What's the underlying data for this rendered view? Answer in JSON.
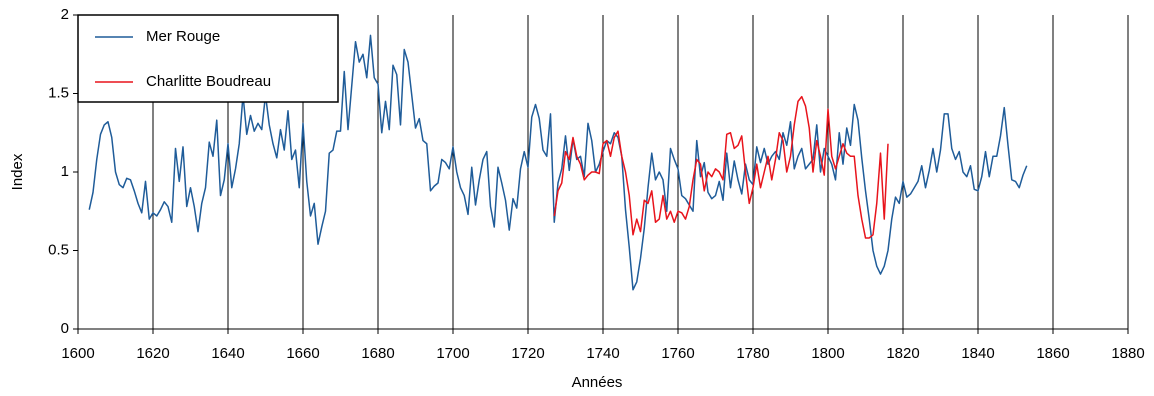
{
  "chart_data": {
    "type": "line",
    "xlabel": "Années",
    "ylabel": "Index",
    "xlim": [
      1600,
      1880
    ],
    "ylim": [
      0,
      2
    ],
    "xticks": [
      1600,
      1620,
      1640,
      1660,
      1680,
      1700,
      1720,
      1740,
      1760,
      1780,
      1800,
      1820,
      1840,
      1860,
      1880
    ],
    "yticks": [
      0,
      0.5,
      1,
      1.5,
      2
    ],
    "grid": "x",
    "legend": "upper left",
    "series": [
      {
        "name": "Mer Rouge",
        "color": "#1f5c99",
        "x": [
          1603,
          1604,
          1605,
          1606,
          1607,
          1608,
          1609,
          1610,
          1611,
          1612,
          1613,
          1614,
          1615,
          1616,
          1617,
          1618,
          1619,
          1620,
          1621,
          1622,
          1623,
          1624,
          1625,
          1626,
          1627,
          1628,
          1629,
          1630,
          1631,
          1632,
          1633,
          1634,
          1635,
          1636,
          1637,
          1638,
          1639,
          1640,
          1641,
          1642,
          1643,
          1644,
          1645,
          1646,
          1647,
          1648,
          1649,
          1650,
          1651,
          1652,
          1653,
          1654,
          1655,
          1656,
          1657,
          1658,
          1659,
          1660,
          1661,
          1662,
          1663,
          1664,
          1665,
          1666,
          1667,
          1668,
          1669,
          1670,
          1671,
          1672,
          1673,
          1674,
          1675,
          1676,
          1677,
          1678,
          1679,
          1680,
          1681,
          1682,
          1683,
          1684,
          1685,
          1686,
          1687,
          1688,
          1689,
          1690,
          1691,
          1692,
          1693,
          1694,
          1695,
          1696,
          1697,
          1698,
          1699,
          1700,
          1701,
          1702,
          1703,
          1704,
          1705,
          1706,
          1707,
          1708,
          1709,
          1710,
          1711,
          1712,
          1713,
          1714,
          1715,
          1716,
          1717,
          1718,
          1719,
          1720,
          1721,
          1722,
          1723,
          1724,
          1725,
          1726,
          1727,
          1728,
          1729,
          1730,
          1731,
          1732,
          1733,
          1734,
          1735,
          1736,
          1737,
          1738,
          1739,
          1740,
          1741,
          1742,
          1743,
          1744,
          1745,
          1746,
          1747,
          1748,
          1749,
          1750,
          1751,
          1752,
          1753,
          1754,
          1755,
          1756,
          1757,
          1758,
          1759,
          1760,
          1761,
          1762,
          1763,
          1764,
          1765,
          1766,
          1767,
          1768,
          1769,
          1770,
          1771,
          1772,
          1773,
          1774,
          1775,
          1776,
          1777,
          1778,
          1779,
          1780,
          1781,
          1782,
          1783,
          1784,
          1785,
          1786,
          1787,
          1788,
          1789,
          1790,
          1791,
          1792,
          1793,
          1794,
          1795,
          1796,
          1797,
          1798,
          1799,
          1800,
          1801,
          1802,
          1803,
          1804,
          1805,
          1806,
          1807,
          1808,
          1809,
          1810,
          1811,
          1812,
          1813,
          1814,
          1815,
          1816,
          1817,
          1818,
          1819,
          1820,
          1821,
          1822,
          1823,
          1824,
          1825,
          1826,
          1827,
          1828,
          1829,
          1830,
          1831,
          1832,
          1833,
          1834,
          1835,
          1836,
          1837,
          1838,
          1839,
          1840,
          1841,
          1842,
          1843,
          1844,
          1845,
          1846,
          1847,
          1848,
          1849,
          1850,
          1851,
          1852,
          1853
        ],
        "values": [
          0.76,
          0.87,
          1.08,
          1.24,
          1.3,
          1.32,
          1.22,
          1.0,
          0.92,
          0.9,
          0.96,
          0.95,
          0.88,
          0.8,
          0.74,
          0.94,
          0.7,
          0.74,
          0.72,
          0.76,
          0.81,
          0.78,
          0.68,
          1.15,
          0.94,
          1.16,
          0.78,
          0.9,
          0.78,
          0.62,
          0.8,
          0.9,
          1.19,
          1.1,
          1.33,
          0.85,
          0.95,
          1.18,
          0.9,
          1.02,
          1.18,
          1.49,
          1.24,
          1.36,
          1.26,
          1.31,
          1.27,
          1.49,
          1.3,
          1.18,
          1.09,
          1.27,
          1.14,
          1.39,
          1.08,
          1.14,
          0.9,
          1.31,
          0.94,
          0.72,
          0.8,
          0.54,
          0.65,
          0.75,
          1.12,
          1.14,
          1.26,
          1.26,
          1.64,
          1.27,
          1.55,
          1.83,
          1.7,
          1.75,
          1.6,
          1.87,
          1.6,
          1.56,
          1.25,
          1.45,
          1.27,
          1.68,
          1.62,
          1.3,
          1.78,
          1.7,
          1.49,
          1.28,
          1.34,
          1.2,
          1.18,
          0.88,
          0.91,
          0.93,
          1.08,
          1.06,
          1.02,
          1.16,
          1.0,
          0.9,
          0.85,
          0.73,
          1.03,
          0.79,
          0.95,
          1.08,
          1.13,
          0.78,
          0.65,
          1.03,
          0.93,
          0.82,
          0.63,
          0.83,
          0.77,
          1.02,
          1.13,
          1.03,
          1.35,
          1.43,
          1.34,
          1.14,
          1.1,
          1.37,
          0.68,
          0.93,
          1.02,
          1.23,
          1.01,
          1.21,
          1.08,
          1.1,
          0.97,
          1.31,
          1.2,
          1.0,
          1.05,
          1.13,
          1.2,
          1.18,
          1.25,
          1.22,
          1.1,
          0.76,
          0.52,
          0.25,
          0.3,
          0.45,
          0.64,
          0.9,
          1.12,
          0.95,
          1.0,
          0.95,
          0.75,
          1.15,
          1.08,
          1.02,
          0.85,
          0.83,
          0.79,
          0.75,
          1.2,
          0.97,
          1.06,
          0.87,
          0.83,
          0.85,
          0.94,
          0.82,
          1.12,
          0.9,
          1.07,
          0.95,
          0.86,
          1.05,
          0.95,
          0.92,
          1.16,
          1.06,
          1.15,
          1.05,
          1.1,
          1.13,
          1.08,
          1.25,
          1.17,
          1.32,
          1.02,
          1.1,
          1.15,
          1.02,
          1.05,
          1.08,
          1.3,
          1.0,
          1.15,
          1.1,
          1.05,
          0.95,
          1.25,
          1.05,
          1.28,
          1.17,
          1.43,
          1.33,
          1.09,
          0.88,
          0.7,
          0.5,
          0.4,
          0.35,
          0.4,
          0.5,
          0.7,
          0.84,
          0.8,
          0.94,
          0.84,
          0.86,
          0.9,
          0.94,
          1.04,
          0.9,
          1.01,
          1.15,
          1.0,
          1.14,
          1.37,
          1.37,
          1.15,
          1.08,
          1.13,
          1.0,
          0.97,
          1.04,
          0.89,
          0.88,
          0.97,
          1.13,
          0.97,
          1.1,
          1.1,
          1.23,
          1.41,
          1.17,
          0.95,
          0.94,
          0.9,
          0.98,
          1.04
        ]
      },
      {
        "name": "Charlitte Boudreau",
        "color": "#e8141c",
        "x": [
          1727,
          1728,
          1729,
          1730,
          1731,
          1732,
          1733,
          1734,
          1735,
          1736,
          1737,
          1738,
          1739,
          1740,
          1741,
          1742,
          1743,
          1744,
          1745,
          1746,
          1747,
          1748,
          1749,
          1750,
          1751,
          1752,
          1753,
          1754,
          1755,
          1756,
          1757,
          1758,
          1759,
          1760,
          1761,
          1762,
          1763,
          1764,
          1765,
          1766,
          1767,
          1768,
          1769,
          1770,
          1771,
          1772,
          1773,
          1774,
          1775,
          1776,
          1777,
          1778,
          1779,
          1780,
          1781,
          1782,
          1783,
          1784,
          1785,
          1786,
          1787,
          1788,
          1789,
          1790,
          1791,
          1792,
          1793,
          1794,
          1795,
          1796,
          1797,
          1798,
          1799,
          1800,
          1801,
          1802,
          1803,
          1804,
          1805,
          1806,
          1807,
          1808,
          1809,
          1810,
          1811,
          1812,
          1813,
          1814,
          1815,
          1816
        ],
        "values": [
          0.72,
          0.88,
          0.93,
          1.13,
          1.08,
          1.22,
          1.1,
          1.05,
          0.95,
          0.98,
          1.0,
          1.0,
          0.99,
          1.18,
          1.2,
          1.1,
          1.22,
          1.26,
          1.1,
          1.0,
          0.85,
          0.6,
          0.7,
          0.62,
          0.82,
          0.8,
          0.88,
          0.68,
          0.7,
          0.85,
          0.7,
          0.75,
          0.68,
          0.75,
          0.74,
          0.7,
          0.78,
          0.95,
          1.08,
          1.05,
          0.88,
          1.0,
          0.97,
          1.02,
          1.0,
          0.95,
          1.24,
          1.25,
          1.15,
          1.17,
          1.23,
          1.0,
          0.8,
          0.9,
          1.05,
          0.9,
          1.0,
          1.1,
          0.95,
          1.08,
          1.25,
          1.2,
          1.0,
          1.1,
          1.3,
          1.45,
          1.48,
          1.42,
          1.28,
          1.0,
          1.2,
          1.1,
          0.98,
          1.4,
          1.1,
          1.02,
          1.1,
          1.18,
          1.12,
          1.1,
          1.1,
          0.85,
          0.7,
          0.58,
          0.58,
          0.6,
          0.8,
          1.12,
          0.7,
          1.18
        ]
      }
    ]
  }
}
